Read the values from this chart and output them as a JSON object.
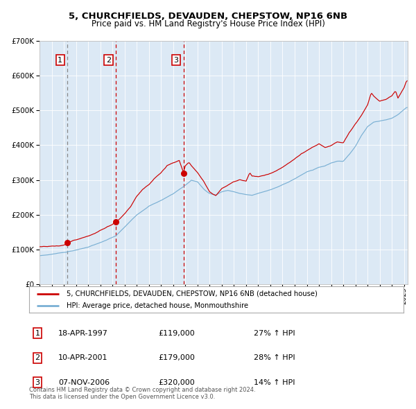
{
  "title1": "5, CHURCHFIELDS, DEVAUDEN, CHEPSTOW, NP16 6NB",
  "title2": "Price paid vs. HM Land Registry's House Price Index (HPI)",
  "bg_color": "#dce9f5",
  "red_line_color": "#cc0000",
  "blue_line_color": "#7ab0d4",
  "sale1_date": 1997.3,
  "sale1_price": 119000,
  "sale2_date": 2001.28,
  "sale2_price": 179000,
  "sale3_date": 2006.85,
  "sale3_price": 320000,
  "legend_label1": "5, CHURCHFIELDS, DEVAUDEN, CHEPSTOW, NP16 6NB (detached house)",
  "legend_label2": "HPI: Average price, detached house, Monmouthshire",
  "table_rows": [
    {
      "num": 1,
      "date": "18-APR-1997",
      "price": "£119,000",
      "pct": "27% ↑ HPI"
    },
    {
      "num": 2,
      "date": "10-APR-2001",
      "price": "£179,000",
      "pct": "28% ↑ HPI"
    },
    {
      "num": 3,
      "date": "07-NOV-2006",
      "price": "£320,000",
      "pct": "14% ↑ HPI"
    }
  ],
  "footer": "Contains HM Land Registry data © Crown copyright and database right 2024.\nThis data is licensed under the Open Government Licence v3.0.",
  "ylim": [
    0,
    700000
  ],
  "xlim_start": 1995.0,
  "xlim_end": 2025.3
}
